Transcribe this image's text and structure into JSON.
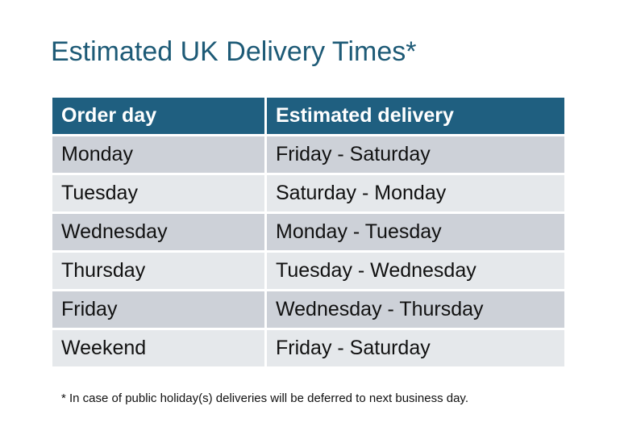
{
  "title": "Estimated UK Delivery Times*",
  "colors": {
    "header": "#1f5f80",
    "row_odd": "#cdd1d8",
    "row_even": "#e5e8eb",
    "title": "#1d5a76"
  },
  "table": {
    "headers": [
      "Order day",
      "Estimated delivery"
    ],
    "rows": [
      [
        "Monday",
        "Friday - Saturday"
      ],
      [
        "Tuesday",
        "Saturday - Monday"
      ],
      [
        "Wednesday",
        "Monday - Tuesday"
      ],
      [
        "Thursday",
        "Tuesday - Wednesday"
      ],
      [
        "Friday",
        "Wednesday - Thursday"
      ],
      [
        "Weekend",
        "Friday - Saturday"
      ]
    ]
  },
  "footnote": "* In case of public holiday(s) deliveries will be deferred to next business day."
}
